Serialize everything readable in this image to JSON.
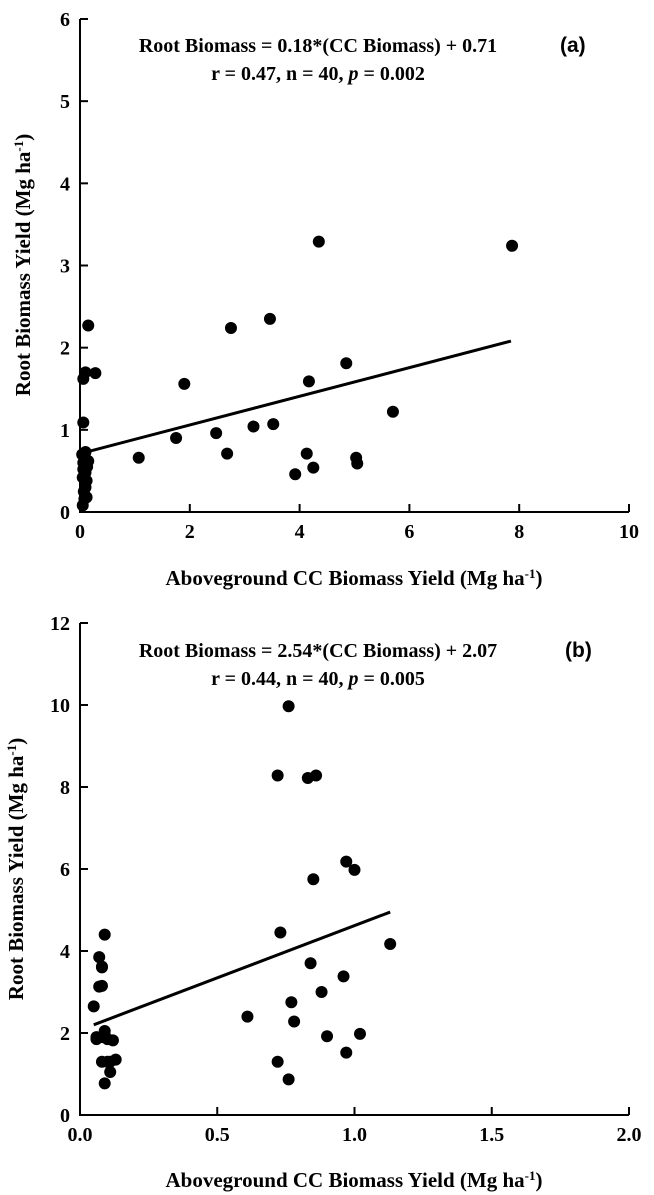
{
  "chart_data": [
    {
      "type": "scatter",
      "panel_label": "(a)",
      "equation": "Root Biomass = 0.18*(CC Biomass) + 0.71",
      "stats": {
        "r_text": "r = 0.47, n = 40, ",
        "p_symbol": "p",
        "p_text": " = 0.002"
      },
      "xlabel": {
        "main": "Aboveground CC Biomass Yield (Mg ha",
        "sup": "-1",
        "close": ")"
      },
      "ylabel": {
        "main": "Root Biomass Yield (Mg ha",
        "sup": "-1",
        "close": ")"
      },
      "xlim": [
        0,
        10
      ],
      "ylim": [
        0,
        6
      ],
      "xticks": [
        "0",
        "2",
        "4",
        "6",
        "8",
        "10"
      ],
      "yticks": [
        "0",
        "1",
        "2",
        "3",
        "4",
        "5",
        "6"
      ],
      "fit_line": {
        "x": [
          0,
          7.85
        ],
        "y": [
          0.71,
          2.08
        ]
      },
      "points": [
        [
          0.05,
          0.08
        ],
        [
          0.08,
          0.16
        ],
        [
          0.12,
          0.18
        ],
        [
          0.07,
          0.25
        ],
        [
          0.1,
          0.3
        ],
        [
          0.12,
          0.38
        ],
        [
          0.05,
          0.42
        ],
        [
          0.1,
          0.48
        ],
        [
          0.06,
          0.52
        ],
        [
          0.13,
          0.55
        ],
        [
          0.06,
          0.6
        ],
        [
          0.09,
          0.65
        ],
        [
          0.04,
          0.7
        ],
        [
          0.1,
          0.73
        ],
        [
          0.06,
          1.09
        ],
        [
          0.06,
          1.62
        ],
        [
          0.1,
          1.7
        ],
        [
          0.28,
          1.69
        ],
        [
          0.15,
          2.27
        ],
        [
          1.07,
          0.66
        ],
        [
          1.75,
          0.9
        ],
        [
          1.9,
          1.56
        ],
        [
          2.48,
          0.96
        ],
        [
          2.68,
          0.71
        ],
        [
          2.75,
          2.24
        ],
        [
          3.16,
          1.04
        ],
        [
          3.46,
          2.35
        ],
        [
          3.52,
          1.07
        ],
        [
          3.92,
          0.46
        ],
        [
          4.13,
          0.71
        ],
        [
          4.17,
          1.59
        ],
        [
          4.25,
          0.54
        ],
        [
          4.35,
          3.29
        ],
        [
          4.85,
          1.81
        ],
        [
          5.03,
          0.66
        ],
        [
          5.05,
          0.59
        ],
        [
          5.7,
          1.22
        ],
        [
          7.87,
          3.24
        ],
        [
          0.15,
          0.62
        ],
        [
          0.08,
          0.45
        ]
      ]
    },
    {
      "type": "scatter",
      "panel_label": "(b)",
      "equation": "Root Biomass = 2.54*(CC Biomass) + 2.07",
      "stats": {
        "r_text": "r = 0.44, n = 40, ",
        "p_symbol": "p",
        "p_text": " = 0.005"
      },
      "xlabel": {
        "main": "Aboveground CC Biomass Yield (Mg ha",
        "sup": "-1",
        "close": ")"
      },
      "ylabel": {
        "main": "Root Biomass Yield (Mg ha",
        "sup": "-1",
        "close": ")"
      },
      "xlim": [
        0,
        2
      ],
      "ylim": [
        0,
        12
      ],
      "xticks": [
        "0.0",
        "0.5",
        "1.0",
        "1.5",
        "2.0"
      ],
      "yticks": [
        "0",
        "2",
        "4",
        "6",
        "8",
        "10",
        "12"
      ],
      "fit_line": {
        "x": [
          0.05,
          1.13
        ],
        "y": [
          2.2,
          4.95
        ]
      },
      "points": [
        [
          0.05,
          2.65
        ],
        [
          0.06,
          1.9
        ],
        [
          0.07,
          3.13
        ],
        [
          0.07,
          3.85
        ],
        [
          0.08,
          3.62
        ],
        [
          0.08,
          3.6
        ],
        [
          0.08,
          3.15
        ],
        [
          0.08,
          1.3
        ],
        [
          0.09,
          4.4
        ],
        [
          0.09,
          2.05
        ],
        [
          0.09,
          0.77
        ],
        [
          0.1,
          1.85
        ],
        [
          0.1,
          1.3
        ],
        [
          0.11,
          1.05
        ],
        [
          0.12,
          1.82
        ],
        [
          0.13,
          1.35
        ],
        [
          0.61,
          2.4
        ],
        [
          0.72,
          8.28
        ],
        [
          0.72,
          1.3
        ],
        [
          0.73,
          4.45
        ],
        [
          0.76,
          9.97
        ],
        [
          0.76,
          0.87
        ],
        [
          0.77,
          2.75
        ],
        [
          0.78,
          2.28
        ],
        [
          0.83,
          8.22
        ],
        [
          0.84,
          3.7
        ],
        [
          0.85,
          5.75
        ],
        [
          0.86,
          8.28
        ],
        [
          0.88,
          3.0
        ],
        [
          0.9,
          1.92
        ],
        [
          0.96,
          3.38
        ],
        [
          0.97,
          6.18
        ],
        [
          0.97,
          1.52
        ],
        [
          1.0,
          5.98
        ],
        [
          1.02,
          1.98
        ],
        [
          1.13,
          4.17
        ],
        [
          0.06,
          1.85
        ],
        [
          0.09,
          1.95
        ],
        [
          0.11,
          1.3
        ],
        [
          0.08,
          1.9
        ]
      ]
    }
  ]
}
